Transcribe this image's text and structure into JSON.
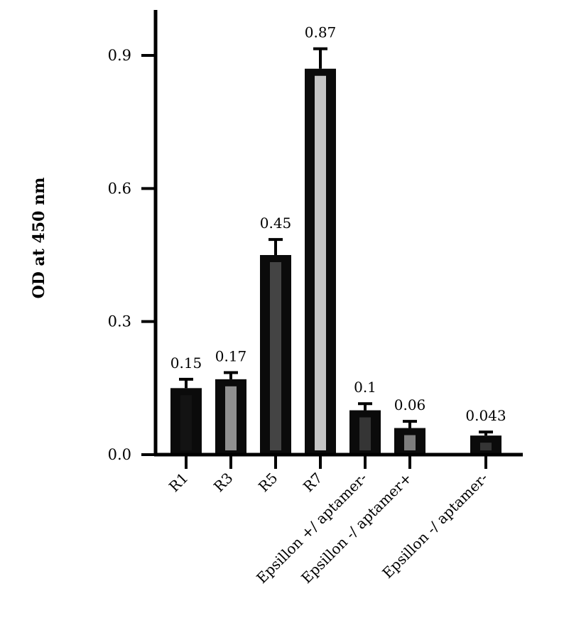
{
  "chart_data": {
    "type": "bar",
    "title": "",
    "xlabel": "",
    "ylabel": "OD at 450 nm",
    "ylim": [
      0,
      0.96
    ],
    "yticks": [
      0.0,
      0.3,
      0.6,
      0.9
    ],
    "ytick_labels": [
      "0.0",
      "0.3",
      "0.6",
      "0.9"
    ],
    "grid": false,
    "legend": "none",
    "categories": [
      "R1",
      "R3",
      "R5",
      "R7",
      "Epsillon +/ aptamer-",
      "Epsillon -/ aptamer+",
      "Epsillon -/ aptamer-"
    ],
    "values": [
      0.15,
      0.17,
      0.45,
      0.87,
      0.1,
      0.06,
      0.043
    ],
    "data_labels": [
      "0.15",
      "0.17",
      "0.45",
      "0.87",
      "0.1",
      "0.06",
      "0.043"
    ],
    "errors": [
      0.02,
      0.015,
      0.035,
      0.045,
      0.015,
      0.015,
      0.008
    ],
    "bar_colors": [
      "#0b0b0b",
      "#0b0b0b",
      "#0b0b0b",
      "#0b0b0b",
      "#0b0b0b",
      "#0b0b0b",
      "#0b0b0b"
    ],
    "bar_highlight_colors": [
      "#141414",
      "#9e9e9e",
      "#4a4a4a",
      "#d9d9d9",
      "#3a3a3a",
      "#8a8a8a",
      "#3a3a3a"
    ]
  }
}
